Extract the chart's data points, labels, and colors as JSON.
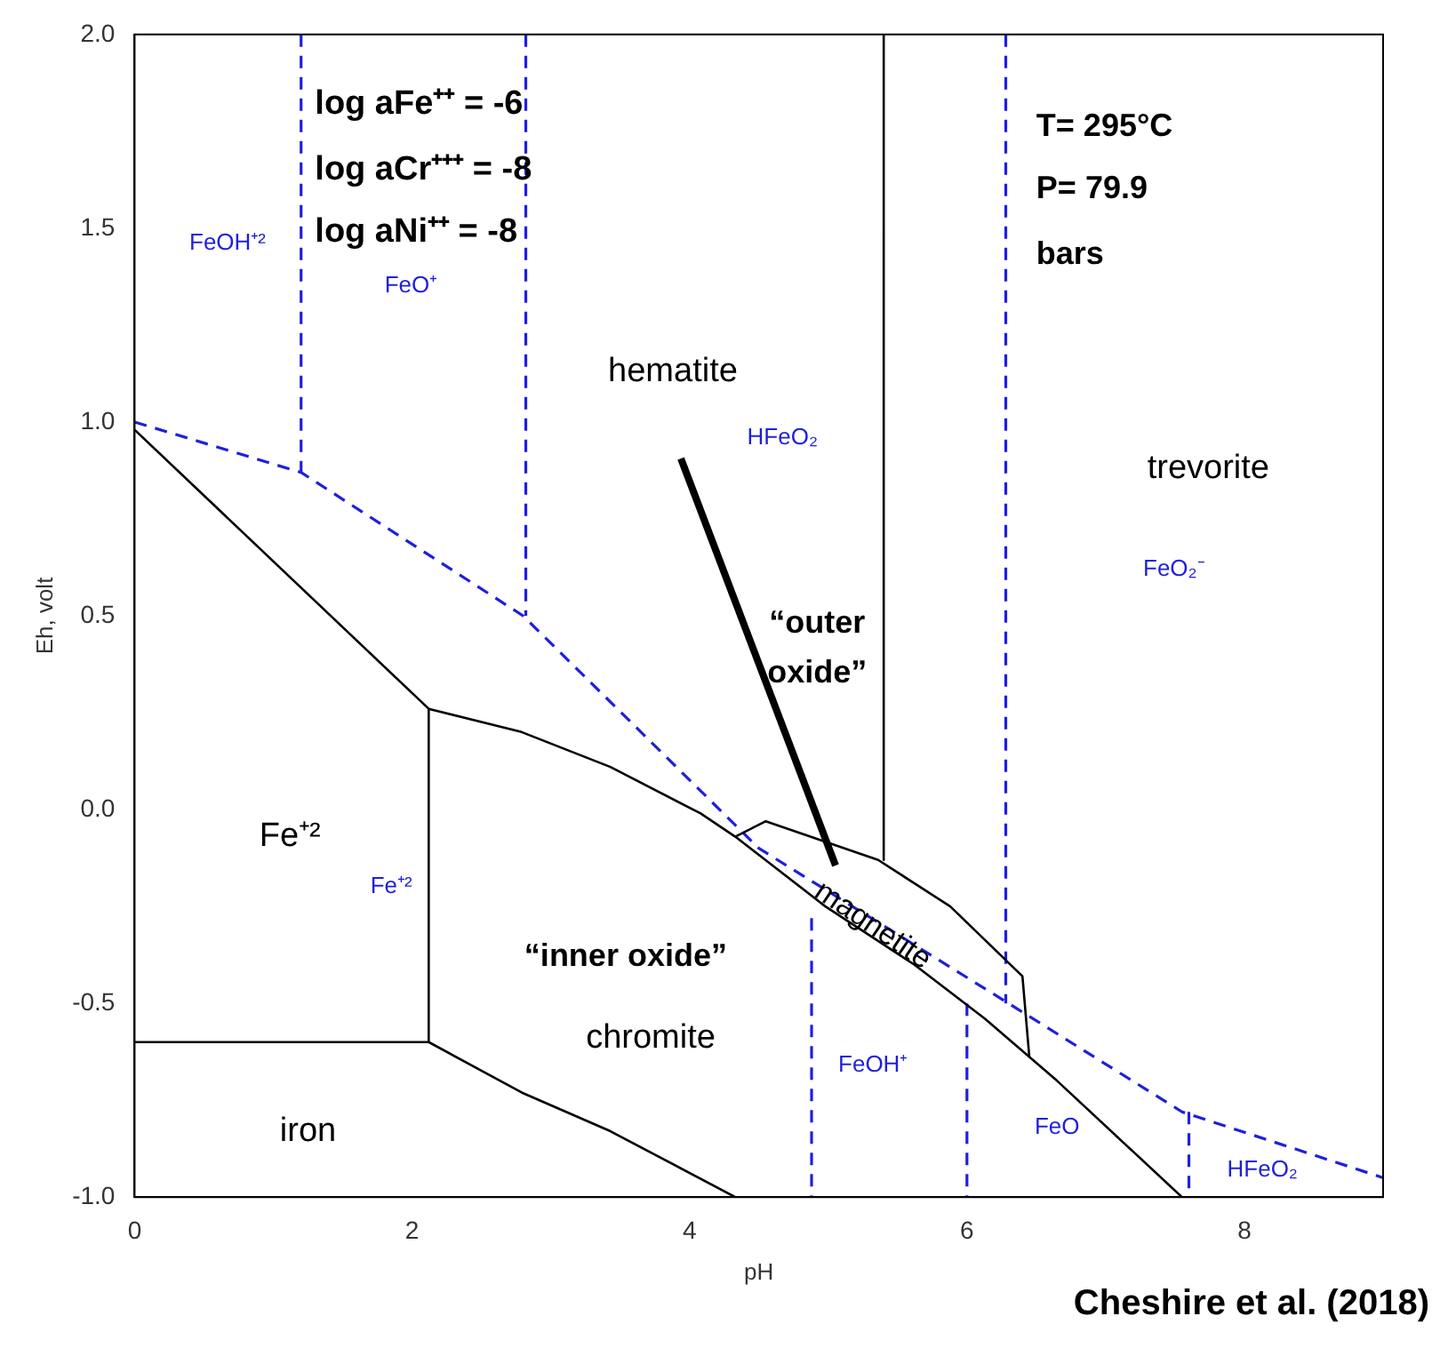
{
  "chart_data": {
    "type": "line",
    "xlabel": "pH",
    "ylabel": "Eh, volt",
    "xlim": [
      0,
      9
    ],
    "xticks": [
      0,
      2,
      4,
      6,
      8
    ],
    "ylim": [
      -1,
      2
    ],
    "yticks": [
      {
        "value": -1,
        "label": "-1.0"
      },
      {
        "value": -0.5,
        "label": "-0.5"
      },
      {
        "value": 0,
        "label": "0.0"
      },
      {
        "value": 0.5,
        "label": "0.5"
      },
      {
        "value": 1,
        "label": "1.0"
      },
      {
        "value": 1.5,
        "label": "1.5"
      },
      {
        "value": 2,
        "label": "2.0"
      }
    ],
    "grid": false,
    "legend": false,
    "marker": "none",
    "series": [
      {
        "color": "#000000",
        "line_style": "solid",
        "x": [
          0,
          2.12,
          2.12,
          0
        ],
        "values": [
          0.98,
          0.26,
          -0.6,
          -0.6
        ]
      },
      {
        "color": "#000000",
        "line_style": "solid",
        "x": [
          2.12,
          2.79,
          3.43,
          4.08,
          4.33,
          4.98,
          5.62,
          6.13,
          6.65,
          7.55
        ],
        "values": [
          0.26,
          0.2,
          0.11,
          -0.01,
          -0.07,
          -0.25,
          -0.4,
          -0.54,
          -0.7,
          -1
        ]
      },
      {
        "color": "#000000",
        "line_style": "solid",
        "x": [
          4.33,
          4.55,
          5.36,
          5.88,
          6.4,
          6.45
        ],
        "values": [
          -0.07,
          -0.03,
          -0.13,
          -0.25,
          -0.43,
          -0.64
        ]
      },
      {
        "color": "#000000",
        "line_style": "solid",
        "x": [
          2.12,
          2.79,
          3.43,
          4.33
        ],
        "values": [
          -0.6,
          -0.73,
          -0.83,
          -1
        ]
      },
      {
        "color": "#000000",
        "line_style": "solid",
        "x": [
          5.4,
          5.4
        ],
        "values": [
          2,
          -0.13
        ]
      },
      {
        "color": "#1f1fdd",
        "line_style": "dashed",
        "x": [
          0,
          1.2,
          2.8,
          4.5,
          6.3,
          7.55,
          9
        ],
        "values": [
          1,
          0.87,
          0.5,
          -0.1,
          -0.5,
          -0.78,
          -0.95
        ]
      },
      {
        "color": "#1f1fdd",
        "line_style": "dashed",
        "x": [
          1.2,
          1.2
        ],
        "values": [
          2,
          0.87
        ]
      },
      {
        "color": "#1f1fdd",
        "line_style": "dashed",
        "x": [
          2.82,
          2.82
        ],
        "values": [
          2,
          0.5
        ]
      },
      {
        "color": "#1f1fdd",
        "line_style": "dashed",
        "x": [
          6.28,
          6.28
        ],
        "values": [
          2,
          -0.5
        ]
      },
      {
        "color": "#1f1fdd",
        "line_style": "dashed",
        "x": [
          4.88,
          4.88
        ],
        "values": [
          -0.28,
          -1
        ]
      },
      {
        "color": "#1f1fdd",
        "line_style": "dashed",
        "x": [
          6,
          6
        ],
        "values": [
          -0.5,
          -1
        ]
      },
      {
        "color": "#1f1fdd",
        "line_style": "dashed",
        "x": [
          7.6,
          7.6
        ],
        "values": [
          -0.78,
          -1
        ]
      }
    ],
    "annotations": [
      "log aFe⁺⁺ = -6",
      "log aCr⁺⁺⁺ = -8",
      "log aNi⁺⁺ = -8",
      "T= 295°C",
      "P= 79.9",
      "bars",
      "FeOH⁺²",
      "FeO⁺",
      "hematite",
      "HFeO₂",
      "trevorite",
      "FeO₂⁻",
      "“outer",
      "oxide”",
      "Fe⁺²",
      "Fe⁺²",
      "magnetite",
      "“inner oxide”",
      "chromite",
      "iron",
      "FeOH⁺",
      "FeO",
      "HFeO₂",
      "Cheshire et al. (2018)"
    ]
  }
}
